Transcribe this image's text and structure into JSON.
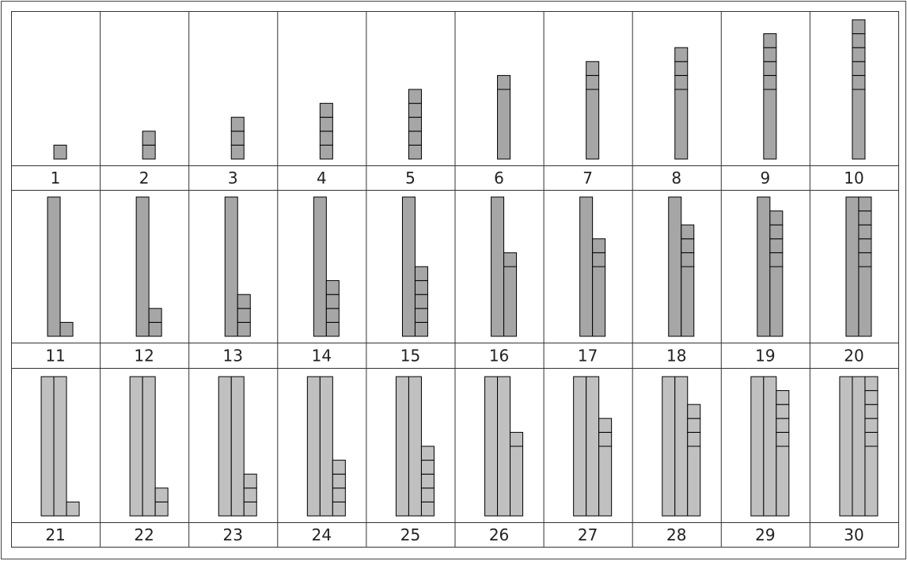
{
  "labels": [
    1,
    2,
    3,
    4,
    5,
    6,
    7,
    8,
    9,
    10,
    11,
    12,
    13,
    14,
    15,
    16,
    17,
    18,
    19,
    20,
    21,
    22,
    23,
    24,
    25,
    26,
    27,
    28,
    29,
    30
  ]
}
